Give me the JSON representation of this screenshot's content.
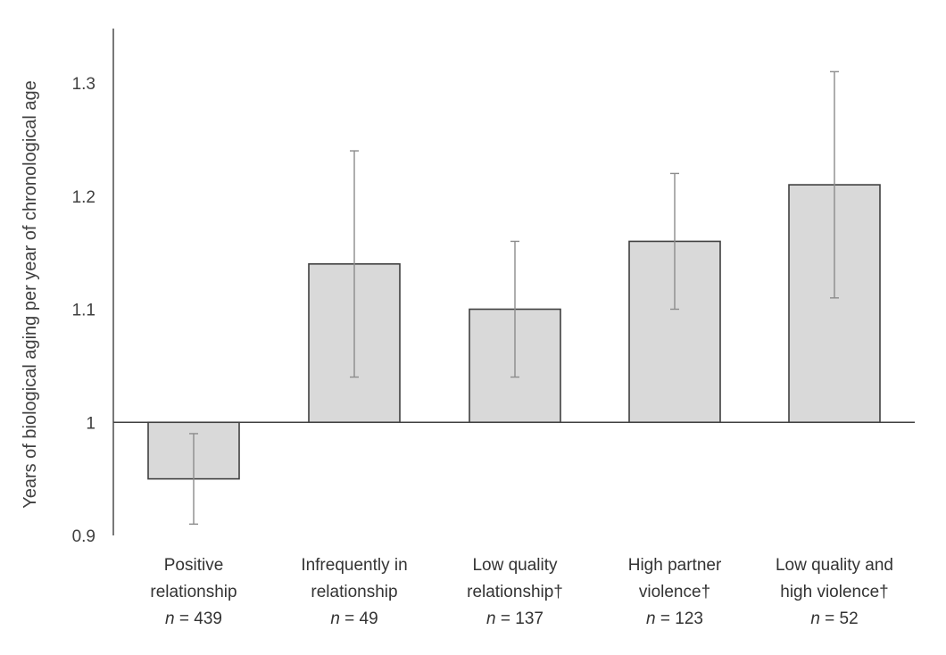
{
  "chart_data": {
    "type": "bar",
    "title": "",
    "xlabel": "",
    "ylabel": "Years of biological aging per year of chronological age",
    "ylim": [
      0.9,
      1.35
    ],
    "baseline": 1,
    "yticks": [
      {
        "value": 0.9,
        "label": "0.9"
      },
      {
        "value": 1.0,
        "label": "1"
      },
      {
        "value": 1.1,
        "label": "1.1"
      },
      {
        "value": 1.2,
        "label": "1.2"
      },
      {
        "value": 1.3,
        "label": "1.3"
      }
    ],
    "categories": [
      {
        "lines": [
          "Positive",
          "relationship"
        ],
        "n_label": "n",
        "n_value": "= 439"
      },
      {
        "lines": [
          "Infrequently in",
          "relationship"
        ],
        "n_label": "n",
        "n_value": "= 49"
      },
      {
        "lines": [
          "Low quality",
          "relationship†"
        ],
        "n_label": "n",
        "n_value": "= 137"
      },
      {
        "lines": [
          "High partner",
          "violence†"
        ],
        "n_label": "n",
        "n_value": "= 123"
      },
      {
        "lines": [
          "Low quality and",
          "high violence†"
        ],
        "n_label": "n",
        "n_value": "= 52"
      }
    ],
    "values": [
      0.95,
      1.14,
      1.1,
      1.16,
      1.21
    ],
    "error_low": [
      0.91,
      1.04,
      1.04,
      1.1,
      1.11
    ],
    "error_high": [
      0.99,
      1.24,
      1.16,
      1.22,
      1.31
    ]
  }
}
